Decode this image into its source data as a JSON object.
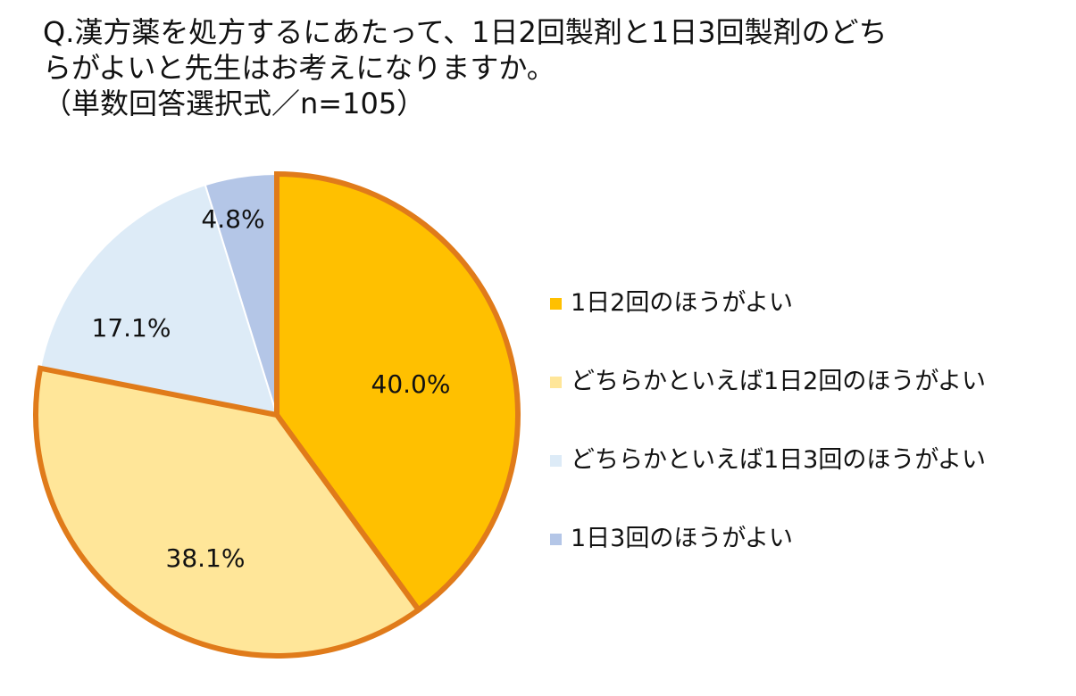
{
  "title_lines": [
    "Q.漢方薬を処方するにあたって、1日2回製剤と1日3回製剤のどち",
    "らがよいと先生はお考えになりますか。",
    "（単数回答選択式／n=105）"
  ],
  "chart_data": {
    "type": "pie",
    "categories": [
      "1日2回のほうがよい",
      "どちらかといえば1日2回のほうがよい",
      "どちらかといえば1日3回のほうがよい",
      "1日3回のほうがよい"
    ],
    "values": [
      40.0,
      38.1,
      17.1,
      4.8
    ],
    "labels": [
      "40.0%",
      "38.1%",
      "17.1%",
      "4.8%"
    ],
    "colors": [
      "#FFC000",
      "#FFE699",
      "#DDEBF7",
      "#B4C6E7"
    ],
    "highlight_border_color": "#E07B1A",
    "highlighted": [
      true,
      true,
      false,
      false
    ],
    "legend_position": "right",
    "start": "12 o'clock",
    "direction": "clockwise"
  }
}
